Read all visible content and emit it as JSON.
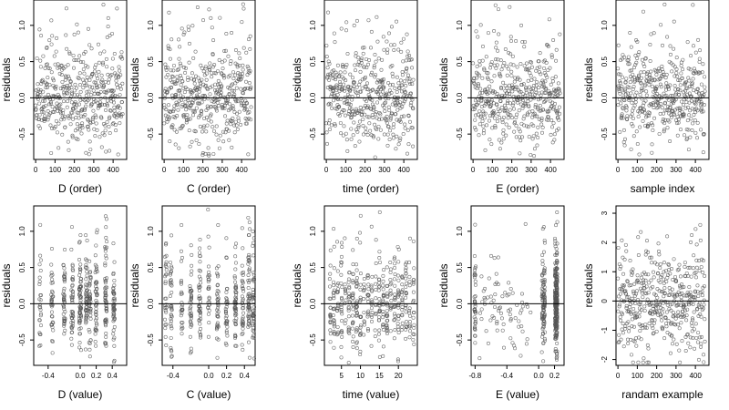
{
  "chart_data": [
    {
      "type": "scatter",
      "xlabel": "D (order)",
      "ylabel": "residuals",
      "xlim": [
        -10,
        470
      ],
      "ylim": [
        -0.85,
        1.35
      ],
      "xticks": [
        0,
        100,
        200,
        300,
        400
      ],
      "xtick_labels": [
        "0",
        "100",
        "200",
        "300",
        "400"
      ],
      "yticks": [
        -0.5,
        0.0,
        0.5,
        1.0
      ],
      "ytick_labels": [
        "-0.5",
        "0.0",
        "0.5",
        "1.0"
      ],
      "reference_line": 0,
      "points": {
        "generator": "index-order",
        "n": 450,
        "seed": 11
      }
    },
    {
      "type": "scatter",
      "xlabel": "C (order)",
      "ylabel": "residuals",
      "xlim": [
        -10,
        470
      ],
      "ylim": [
        -0.85,
        1.35
      ],
      "xticks": [
        0,
        100,
        200,
        300,
        400
      ],
      "xtick_labels": [
        "0",
        "100",
        "200",
        "300",
        "400"
      ],
      "yticks": [
        -0.5,
        0.0,
        0.5,
        1.0
      ],
      "ytick_labels": [
        "-0.5",
        "0.0",
        "0.5",
        "1.0"
      ],
      "reference_line": 0,
      "points": {
        "generator": "index-order",
        "n": 450,
        "seed": 23
      }
    },
    {
      "type": "scatter",
      "xlabel": "time (order)",
      "ylabel": "residuals",
      "xlim": [
        -10,
        470
      ],
      "ylim": [
        -0.85,
        1.35
      ],
      "xticks": [
        0,
        100,
        200,
        300,
        400
      ],
      "xtick_labels": [
        "0",
        "100",
        "200",
        "300",
        "400"
      ],
      "yticks": [
        -0.5,
        0.0,
        0.5,
        1.0
      ],
      "ytick_labels": [
        "-0.5",
        "0.0",
        "0.5",
        "1.0"
      ],
      "reference_line": 0,
      "points": {
        "generator": "index-order",
        "n": 450,
        "seed": 37
      }
    },
    {
      "type": "scatter",
      "xlabel": "E (order)",
      "ylabel": "residuals",
      "xlim": [
        -10,
        470
      ],
      "ylim": [
        -0.85,
        1.35
      ],
      "xticks": [
        0,
        100,
        200,
        300,
        400
      ],
      "xtick_labels": [
        "0",
        "100",
        "200",
        "300",
        "400"
      ],
      "yticks": [
        -0.5,
        0.0,
        0.5,
        1.0
      ],
      "ytick_labels": [
        "-0.5",
        "0.0",
        "0.5",
        "1.0"
      ],
      "reference_line": 0,
      "points": {
        "generator": "index-order",
        "n": 450,
        "seed": 41
      }
    },
    {
      "type": "scatter",
      "xlabel": "sample index",
      "ylabel": "residuals",
      "xlim": [
        -10,
        470
      ],
      "ylim": [
        -0.85,
        1.35
      ],
      "xticks": [
        0,
        100,
        200,
        300,
        400
      ],
      "xtick_labels": [
        "0",
        "100",
        "200",
        "300",
        "400"
      ],
      "yticks": [
        -0.5,
        0.0,
        0.5,
        1.0
      ],
      "ytick_labels": [
        "-0.5",
        "0.0",
        "0.5",
        "1.0"
      ],
      "reference_line": 0,
      "points": {
        "generator": "index-order",
        "n": 450,
        "seed": 53
      }
    },
    {
      "type": "scatter",
      "xlabel": "D (value)",
      "ylabel": "residuals",
      "xlim": [
        -0.58,
        0.58
      ],
      "ylim": [
        -0.85,
        1.35
      ],
      "xticks": [
        -0.4,
        0.0,
        0.2,
        0.4
      ],
      "xtick_labels": [
        "-0.4",
        "0.0",
        "0.2",
        "0.4"
      ],
      "yticks": [
        -0.5,
        0.0,
        0.5,
        1.0
      ],
      "ytick_labels": [
        "-0.5",
        "0.0",
        "0.5",
        "1.0"
      ],
      "reference_line": 0,
      "points": {
        "generator": "discrete-values",
        "n": 450,
        "seed": 61,
        "levels": [
          -0.5,
          -0.35,
          -0.2,
          -0.1,
          0.0,
          0.08,
          0.12,
          0.2,
          0.32,
          0.42
        ],
        "jitter": 0.012
      }
    },
    {
      "type": "scatter",
      "xlabel": "C (value)",
      "ylabel": "residuals",
      "xlim": [
        -0.52,
        0.52
      ],
      "ylim": [
        -0.85,
        1.35
      ],
      "xticks": [
        -0.4,
        0.0,
        0.2,
        0.4
      ],
      "xtick_labels": [
        "-0.4",
        "0.0",
        "0.2",
        "0.4"
      ],
      "yticks": [
        -0.5,
        0.0,
        0.5,
        1.0
      ],
      "ytick_labels": [
        "-0.5",
        "0.0",
        "0.5",
        "1.0"
      ],
      "reference_line": 0,
      "points": {
        "generator": "discrete-values",
        "n": 450,
        "seed": 71,
        "levels": [
          -0.48,
          -0.42,
          -0.3,
          -0.2,
          -0.1,
          0.0,
          0.1,
          0.2,
          0.3,
          0.38,
          0.45,
          0.5
        ],
        "jitter": 0.01
      }
    },
    {
      "type": "scatter",
      "xlabel": "time (value)",
      "ylabel": "residuals",
      "xlim": [
        0.5,
        25
      ],
      "ylim": [
        -0.85,
        1.35
      ],
      "xticks": [
        5,
        10,
        15,
        20
      ],
      "xtick_labels": [
        "5",
        "10",
        "15",
        "20"
      ],
      "yticks": [
        -0.5,
        0.0,
        0.5,
        1.0
      ],
      "ytick_labels": [
        "-0.5",
        "0.0",
        "0.5",
        "1.0"
      ],
      "reference_line": 0,
      "points": {
        "generator": "discrete-values",
        "n": 450,
        "seed": 83,
        "levels": [
          2,
          3,
          4,
          5,
          6,
          7,
          8,
          9,
          10,
          11,
          12,
          13,
          14,
          15,
          16,
          17,
          18,
          19,
          20,
          21,
          22,
          23,
          24
        ],
        "jitter": 0.15
      }
    },
    {
      "type": "scatter",
      "xlabel": "E (value)",
      "ylabel": "residuals",
      "xlim": [
        -0.85,
        0.32
      ],
      "ylim": [
        -0.85,
        1.35
      ],
      "xticks": [
        -0.8,
        -0.4,
        0.0,
        0.2
      ],
      "xtick_labels": [
        "-0.8",
        "-0.4",
        "0.0",
        "0.2"
      ],
      "yticks": [
        -0.5,
        0.0,
        0.5,
        1.0
      ],
      "ytick_labels": [
        "-0.5",
        "0.0",
        "0.5",
        "1.0"
      ],
      "reference_line": 0,
      "points": {
        "generator": "e-values",
        "n": 450,
        "seed": 97
      }
    },
    {
      "type": "scatter",
      "xlabel": "randam example",
      "ylabel": "residuals",
      "xlim": [
        -10,
        470
      ],
      "ylim": [
        -2.2,
        3.25
      ],
      "xticks": [
        0,
        100,
        200,
        300,
        400
      ],
      "xtick_labels": [
        "0",
        "100",
        "200",
        "300",
        "400"
      ],
      "yticks": [
        -2,
        -1,
        0,
        1,
        2,
        3
      ],
      "ytick_labels": [
        "-2",
        "-1",
        "0",
        "1",
        "2",
        "3"
      ],
      "reference_line": 0,
      "points": {
        "generator": "normal-index",
        "n": 450,
        "seed": 109
      }
    }
  ]
}
